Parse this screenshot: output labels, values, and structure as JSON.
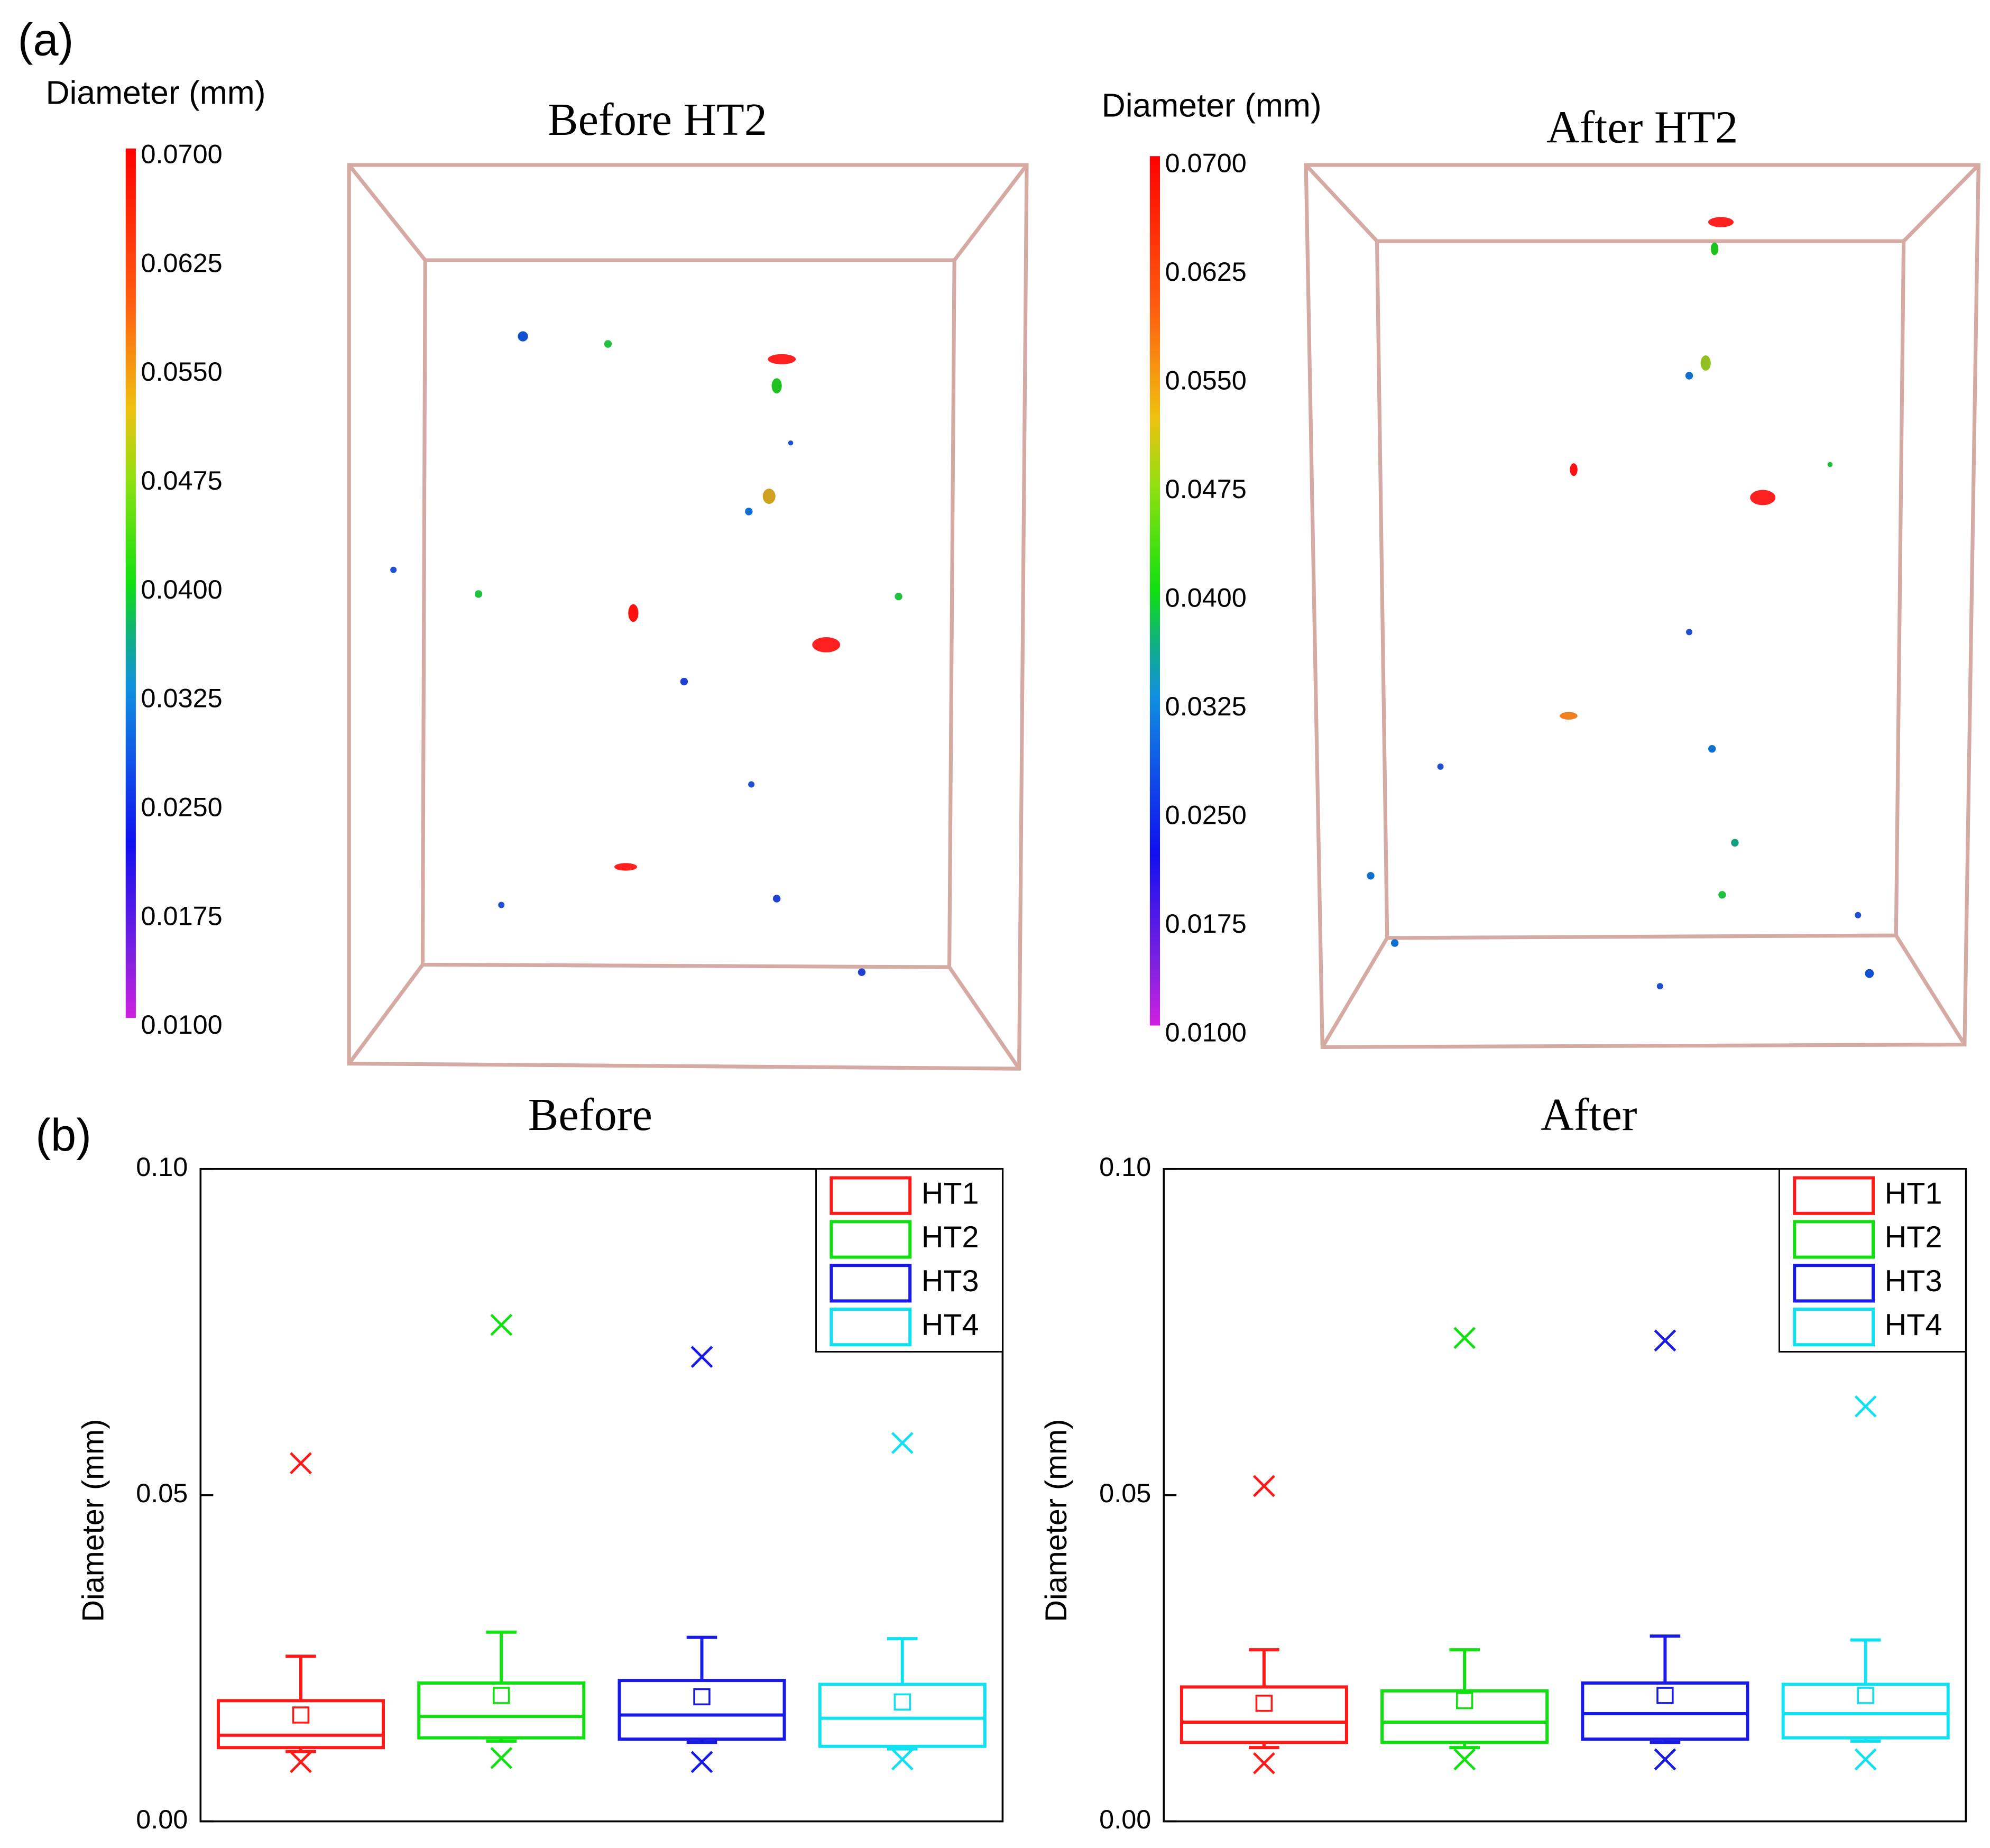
{
  "panel_a": {
    "label": "(a)",
    "views": [
      {
        "title": "Before HT2",
        "colorbar_label": "Diameter (mm)",
        "colorbar_ticks": [
          {
            "value": 0.07,
            "label": "0.0700"
          },
          {
            "value": 0.0625,
            "label": "0.0625"
          },
          {
            "value": 0.055,
            "label": "0.0550"
          },
          {
            "value": 0.0475,
            "label": "0.0475"
          },
          {
            "value": 0.04,
            "label": "0.0400"
          },
          {
            "value": 0.0325,
            "label": "0.0325"
          },
          {
            "value": 0.025,
            "label": "0.0250"
          },
          {
            "value": 0.0175,
            "label": "0.0175"
          },
          {
            "value": 0.01,
            "label": "0.0100"
          }
        ]
      },
      {
        "title": "After HT2",
        "colorbar_label": "Diameter (mm)",
        "colorbar_ticks": [
          {
            "value": 0.07,
            "label": "0.0700"
          },
          {
            "value": 0.0625,
            "label": "0.0625"
          },
          {
            "value": 0.055,
            "label": "0.0550"
          },
          {
            "value": 0.0475,
            "label": "0.0475"
          },
          {
            "value": 0.04,
            "label": "0.0400"
          },
          {
            "value": 0.0325,
            "label": "0.0325"
          },
          {
            "value": 0.025,
            "label": "0.0250"
          },
          {
            "value": 0.0175,
            "label": "0.0175"
          },
          {
            "value": 0.01,
            "label": "0.0100"
          }
        ]
      }
    ]
  },
  "panel_b": {
    "label": "(b)"
  },
  "chart_data": [
    {
      "type": "box",
      "title": "Before",
      "y_label": "Diameter (mm)",
      "ylim": [
        0,
        0.1
      ],
      "yticks": [
        {
          "value": 0,
          "label": "0.00"
        },
        {
          "value": 0.05,
          "label": "0.05"
        },
        {
          "value": 0.1,
          "label": "0.10"
        }
      ],
      "legend": "upper right",
      "series": [
        {
          "name": "HT1",
          "color": "#ff1a1a",
          "q1": 0.0113,
          "median": 0.0132,
          "q3": 0.0185,
          "whisker_low": 0.0107,
          "whisker_high": 0.0253,
          "mean": 0.0163,
          "min": 0.0091,
          "max": 0.0549
        },
        {
          "name": "HT2",
          "color": "#10e010",
          "q1": 0.0128,
          "median": 0.0161,
          "q3": 0.0212,
          "whisker_low": 0.0123,
          "whisker_high": 0.029,
          "mean": 0.0193,
          "min": 0.0097,
          "max": 0.0761
        },
        {
          "name": "HT3",
          "color": "#1a1ae6",
          "q1": 0.0126,
          "median": 0.0163,
          "q3": 0.0216,
          "whisker_low": 0.0121,
          "whisker_high": 0.0282,
          "mean": 0.0191,
          "min": 0.0091,
          "max": 0.0712
        },
        {
          "name": "HT4",
          "color": "#10e0f0",
          "q1": 0.0115,
          "median": 0.0158,
          "q3": 0.021,
          "whisker_low": 0.0111,
          "whisker_high": 0.028,
          "mean": 0.0183,
          "min": 0.0095,
          "max": 0.058
        }
      ]
    },
    {
      "type": "box",
      "title": "After",
      "y_label": "Diameter (mm)",
      "ylim": [
        0,
        0.1
      ],
      "yticks": [
        {
          "value": 0,
          "label": "0.00"
        },
        {
          "value": 0.05,
          "label": "0.05"
        },
        {
          "value": 0.1,
          "label": "0.10"
        }
      ],
      "legend": "upper right",
      "series": [
        {
          "name": "HT1",
          "color": "#ff1a1a",
          "q1": 0.0121,
          "median": 0.0152,
          "q3": 0.0206,
          "whisker_low": 0.0113,
          "whisker_high": 0.0263,
          "mean": 0.0181,
          "min": 0.0089,
          "max": 0.0514
        },
        {
          "name": "HT2",
          "color": "#10e010",
          "q1": 0.0121,
          "median": 0.0152,
          "q3": 0.02,
          "whisker_low": 0.0113,
          "whisker_high": 0.0263,
          "mean": 0.0185,
          "min": 0.0095,
          "max": 0.0741
        },
        {
          "name": "HT3",
          "color": "#1a1ae6",
          "q1": 0.0126,
          "median": 0.0165,
          "q3": 0.0212,
          "whisker_low": 0.0121,
          "whisker_high": 0.0284,
          "mean": 0.0193,
          "min": 0.0095,
          "max": 0.0737
        },
        {
          "name": "HT4",
          "color": "#10e0f0",
          "q1": 0.0128,
          "median": 0.0165,
          "q3": 0.021,
          "whisker_low": 0.0123,
          "whisker_high": 0.0278,
          "mean": 0.0193,
          "min": 0.0095,
          "max": 0.0636
        }
      ]
    }
  ]
}
